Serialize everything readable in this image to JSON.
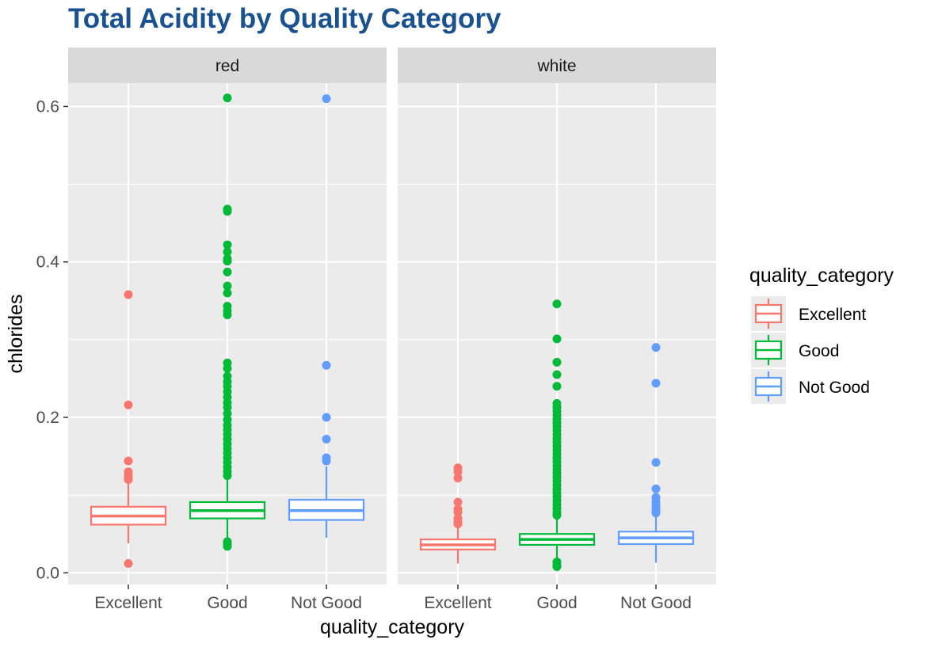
{
  "chart_data": {
    "type": "boxplot",
    "title": "Total Acidity by Quality Category",
    "xlabel": "quality_category",
    "ylabel": "chlorides",
    "ylim": [
      -0.015,
      0.63
    ],
    "yticks": [
      0.0,
      0.2,
      0.4,
      0.6
    ],
    "ytick_labels": [
      "0.0",
      "0.2",
      "0.4",
      "0.6"
    ],
    "grid": true,
    "categories": [
      "Excellent",
      "Good",
      "Not Good"
    ],
    "legend": {
      "title": "quality_category",
      "position": "right",
      "entries": [
        "Excellent",
        "Good",
        "Not Good"
      ]
    },
    "colors": {
      "Excellent": "#f8766d",
      "Good": "#00ba38",
      "Not Good": "#619cff",
      "panel_bg": "#ebebeb",
      "strip_bg": "#d9d9d9",
      "grid": "#ffffff",
      "title": "#1a5190"
    },
    "panels": [
      {
        "label": "red",
        "boxes": [
          {
            "category": "Excellent",
            "whisker_low": 0.038,
            "q1": 0.062,
            "median": 0.073,
            "q3": 0.085,
            "whisker_high": 0.119,
            "outliers": [
              0.358,
              0.216,
              0.144,
              0.13,
              0.126,
              0.122,
              0.12,
              0.012
            ]
          },
          {
            "category": "Good",
            "whisker_low": 0.041,
            "q1": 0.07,
            "median": 0.08,
            "q3": 0.091,
            "whisker_high": 0.121,
            "outliers": [
              0.611,
              0.468,
              0.465,
              0.422,
              0.413,
              0.404,
              0.401,
              0.387,
              0.369,
              0.36,
              0.343,
              0.337,
              0.332,
              0.27,
              0.263,
              0.253,
              0.246,
              0.24,
              0.233,
              0.226,
              0.219,
              0.213,
              0.205,
              0.197,
              0.19,
              0.184,
              0.178,
              0.172,
              0.166,
              0.16,
              0.154,
              0.148,
              0.142,
              0.136,
              0.13,
              0.125,
              0.04,
              0.037,
              0.034
            ]
          },
          {
            "category": "Not Good",
            "whisker_low": 0.045,
            "q1": 0.068,
            "median": 0.08,
            "q3": 0.094,
            "whisker_high": 0.137,
            "outliers": [
              0.61,
              0.267,
              0.2,
              0.172,
              0.148,
              0.144
            ]
          }
        ]
      },
      {
        "label": "white",
        "boxes": [
          {
            "category": "Excellent",
            "whisker_low": 0.012,
            "q1": 0.03,
            "median": 0.036,
            "q3": 0.043,
            "whisker_high": 0.062,
            "outliers": [
              0.135,
              0.13,
              0.122,
              0.091,
              0.082,
              0.078,
              0.07,
              0.066,
              0.063
            ]
          },
          {
            "category": "Good",
            "whisker_low": 0.018,
            "q1": 0.036,
            "median": 0.043,
            "q3": 0.05,
            "whisker_high": 0.07,
            "outliers": [
              0.346,
              0.301,
              0.271,
              0.255,
              0.24,
              0.218,
              0.213,
              0.208,
              0.203,
              0.198,
              0.193,
              0.188,
              0.183,
              0.178,
              0.173,
              0.168,
              0.163,
              0.158,
              0.153,
              0.148,
              0.143,
              0.138,
              0.133,
              0.128,
              0.123,
              0.118,
              0.113,
              0.108,
              0.103,
              0.098,
              0.093,
              0.088,
              0.083,
              0.078,
              0.074,
              0.014,
              0.01,
              0.008
            ]
          },
          {
            "category": "Not Good",
            "whisker_low": 0.013,
            "q1": 0.037,
            "median": 0.045,
            "q3": 0.053,
            "whisker_high": 0.075,
            "outliers": [
              0.29,
              0.244,
              0.142,
              0.108,
              0.097,
              0.092,
              0.088,
              0.084,
              0.08,
              0.077
            ]
          }
        ]
      }
    ]
  }
}
